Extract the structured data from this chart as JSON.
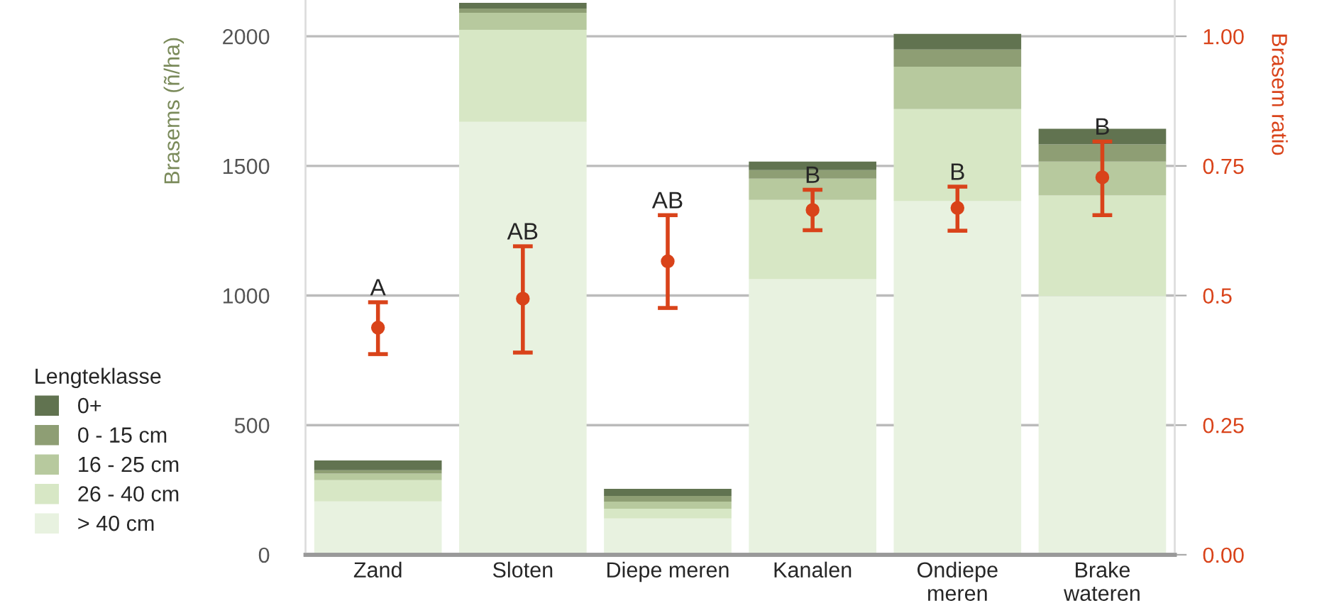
{
  "chart_data": {
    "type": "bar",
    "stacked": true,
    "ylabel": "Brasems (ñ/ha)",
    "y2label": "Brasem ratio",
    "legend_title": "Lengteklasse",
    "legend": "left",
    "grid": "y",
    "categories": [
      "Zand",
      "Sloten",
      "Diepe meren",
      "Kanalen",
      "Ondiepe\nmeren",
      "Brake\nwateren"
    ],
    "ylim": [
      0,
      2140
    ],
    "yticks": [
      0,
      500,
      1000,
      1500,
      2000
    ],
    "y2lim": [
      0,
      1.07
    ],
    "y2ticks": [
      {
        "value": 0,
        "label": "0.00"
      },
      0.25,
      0.5,
      0.75,
      {
        "value": 1,
        "label": "1.00"
      }
    ],
    "series": [
      {
        "name": "> 40 cm",
        "color": "#e8f2e0",
        "values": [
          206,
          1670,
          140,
          1063,
          1364,
          998
        ]
      },
      {
        "name": "26 - 40 cm",
        "color": "#d7e7c5",
        "values": [
          82,
          355,
          38,
          306,
          355,
          388
        ]
      },
      {
        "name": "16 - 25 cm",
        "color": "#b7c99e",
        "values": [
          25,
          66,
          27,
          82,
          164,
          131
        ]
      },
      {
        "name": "0 - 15 cm",
        "color": "#8e9e74",
        "values": [
          13,
          16,
          22,
          33,
          66,
          66
        ]
      },
      {
        "name": "0+",
        "color": "#617350",
        "values": [
          38,
          22,
          27,
          33,
          60,
          60
        ]
      },
      {
        "type": "scatter",
        "axis": "y2",
        "color": "#d9431a",
        "marker": "circle",
        "values": [
          0.438,
          0.494,
          0.566,
          0.665,
          0.669,
          0.728
        ],
        "errors": [
          [
            0.387,
            0.487
          ],
          [
            0.39,
            0.595
          ],
          [
            0.476,
            0.655
          ],
          [
            0.626,
            0.704
          ],
          [
            0.625,
            0.71
          ],
          [
            0.655,
            0.797
          ]
        ]
      }
    ],
    "annotations": [
      "A",
      "AB",
      "AB",
      "B",
      "B",
      "B"
    ]
  }
}
